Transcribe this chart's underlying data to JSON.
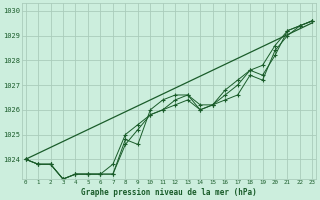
{
  "x": [
    0,
    1,
    2,
    3,
    4,
    5,
    6,
    7,
    8,
    9,
    10,
    11,
    12,
    13,
    14,
    15,
    16,
    17,
    18,
    19,
    20,
    21,
    22,
    23
  ],
  "line1": [
    1024.0,
    1023.8,
    1023.8,
    1023.2,
    1023.4,
    1023.4,
    1023.4,
    1023.4,
    1024.6,
    1025.2,
    1025.8,
    1026.0,
    1026.2,
    1026.4,
    1026.0,
    1026.2,
    1026.4,
    1026.6,
    1027.4,
    1027.2,
    1028.4,
    1029.0,
    1029.4,
    1029.6
  ],
  "line2": [
    1024.0,
    1023.8,
    1023.8,
    1023.2,
    1023.4,
    1023.4,
    1023.4,
    1023.8,
    1025.0,
    1025.4,
    1025.8,
    1026.0,
    1026.4,
    1026.6,
    1026.2,
    1026.2,
    1026.6,
    1027.0,
    1027.6,
    1027.8,
    1028.6,
    1029.2,
    1029.4,
    1029.6
  ],
  "line3": [
    1024.0,
    1023.8,
    1023.8,
    1023.2,
    1023.4,
    1023.4,
    1023.4,
    1023.4,
    1024.8,
    1024.6,
    1026.0,
    1026.4,
    1026.6,
    1026.6,
    1026.0,
    1026.2,
    1026.8,
    1027.2,
    1027.6,
    1027.4,
    1028.2,
    1029.2,
    1029.4,
    1029.6
  ],
  "line_straight": [
    1024.0,
    1024.24,
    1024.48,
    1024.72,
    1024.96,
    1025.2,
    1025.44,
    1025.68,
    1025.92,
    1026.16,
    1026.4,
    1026.64,
    1026.88,
    1027.12,
    1027.36,
    1027.6,
    1027.84,
    1028.08,
    1028.32,
    1028.56,
    1028.8,
    1029.04,
    1029.28,
    1029.52
  ],
  "bg_color": "#cceedd",
  "grid_color": "#aaccbb",
  "line_color": "#1a5c2a",
  "ylabel_ticks": [
    1024,
    1025,
    1026,
    1027,
    1028,
    1029,
    1030
  ],
  "xlabel": "Graphe pression niveau de la mer (hPa)",
  "ylim": [
    1023.2,
    1030.3
  ],
  "xlim": [
    -0.3,
    23.3
  ]
}
